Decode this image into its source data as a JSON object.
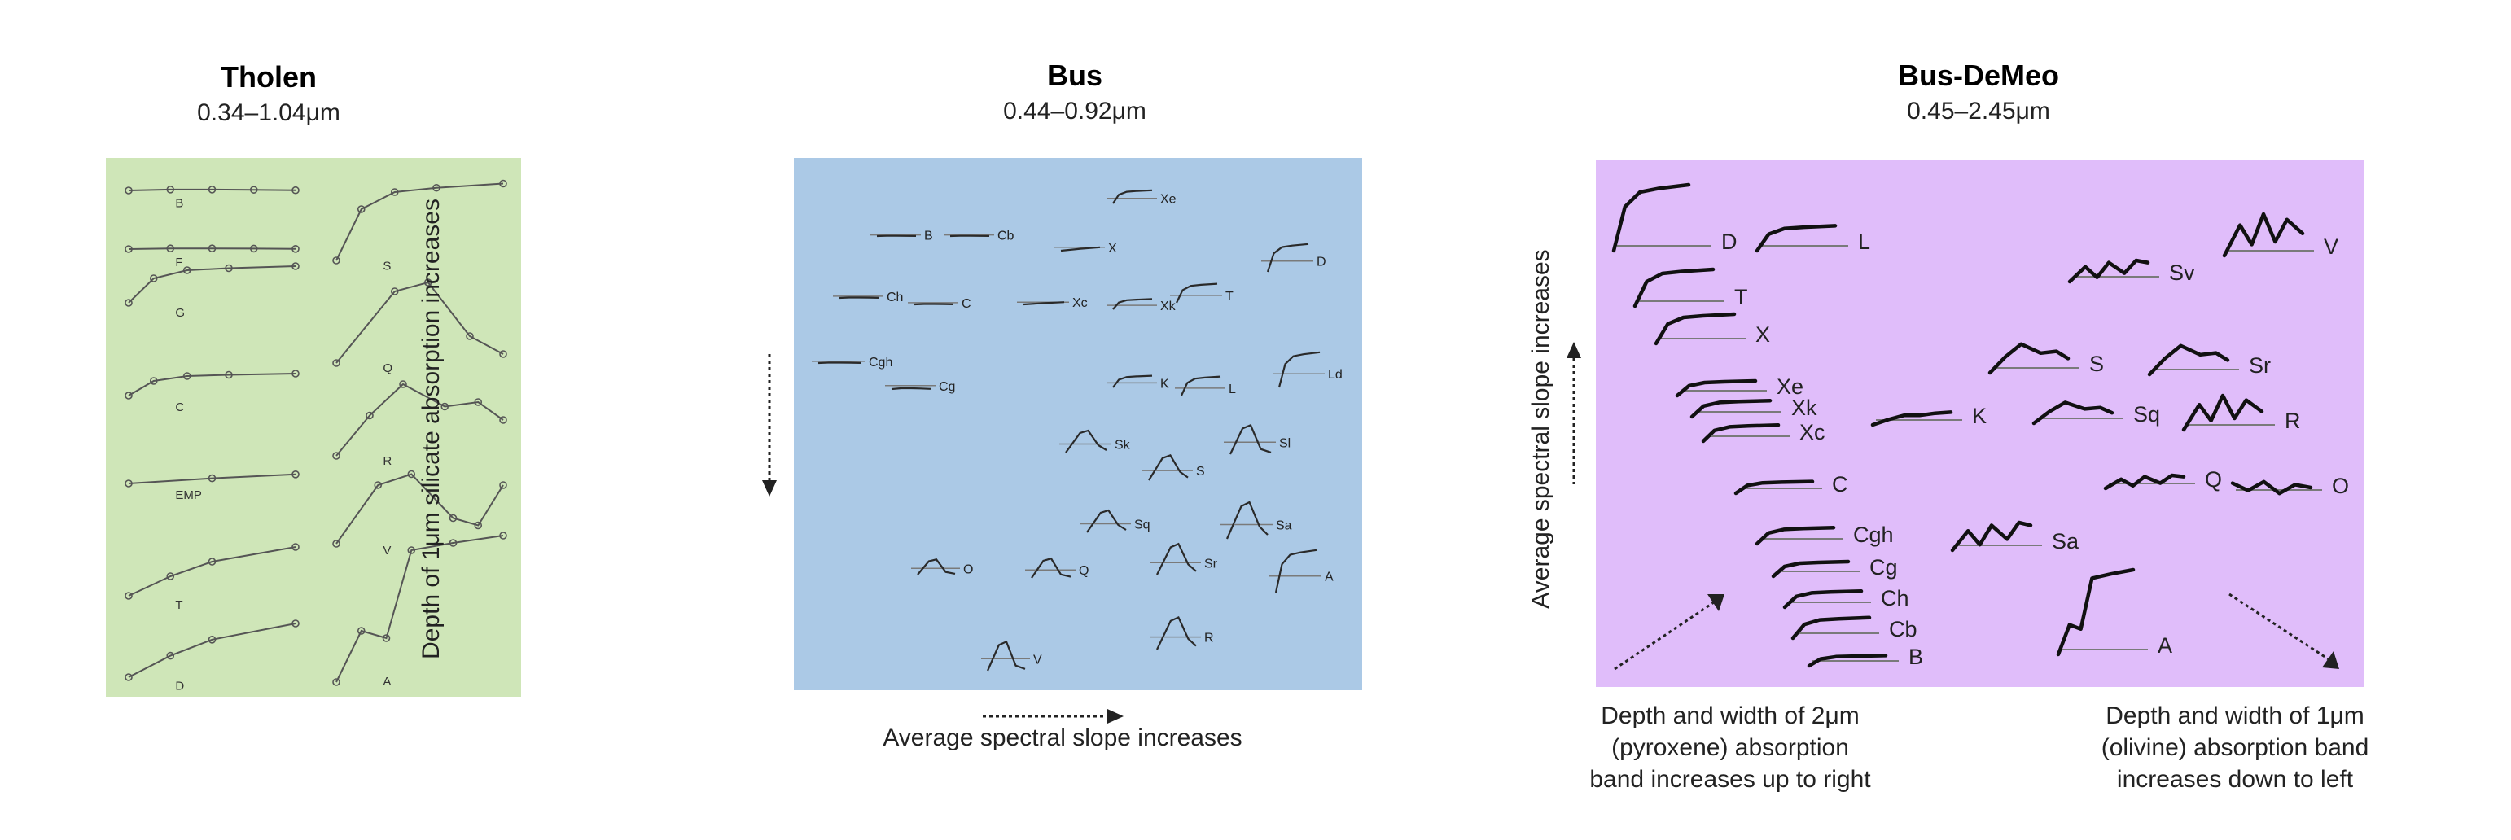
{
  "panels": [
    {
      "id": "tholen",
      "title": "Tholen",
      "range": "0.34–1.04μm",
      "bg": "#cfe6b8",
      "classes": [
        "B",
        "F",
        "G",
        "C",
        "EMP",
        "T",
        "D",
        "S",
        "Q",
        "R",
        "V",
        "A"
      ]
    },
    {
      "id": "bus",
      "title": "Bus",
      "range": "0.44–0.92μm",
      "bg": "#abc9e6",
      "y_axis": "Depth of 1μm silicate absorption increases",
      "x_axis": "Average spectral slope increases",
      "classes": [
        "Xe",
        "B",
        "Cb",
        "X",
        "D",
        "Ch",
        "C",
        "Xc",
        "Xk",
        "T",
        "Cgh",
        "Cg",
        "K",
        "L",
        "Ld",
        "Sk",
        "S",
        "Sl",
        "Sq",
        "Sa",
        "O",
        "Q",
        "Sr",
        "A",
        "V",
        "R"
      ]
    },
    {
      "id": "busdemeo",
      "title": "Bus-DeMeo",
      "range": "0.45–2.45μm",
      "bg": "#e0bdfa",
      "y_axis": "Average spectral slope increases",
      "note_left": [
        "Depth and width of 2μm",
        "(pyroxene) absorption",
        "band increases up to right"
      ],
      "note_right": [
        "Depth and width of 1μm",
        "(olivine) absorption band",
        "increases down to left"
      ],
      "classes": [
        "D",
        "L",
        "T",
        "X",
        "Xe",
        "Xk",
        "Xc",
        "C",
        "Cgh",
        "Cg",
        "Ch",
        "Cb",
        "B",
        "K",
        "Sv",
        "V",
        "S",
        "Sr",
        "Sq",
        "R",
        "Q",
        "O",
        "Sa",
        "A"
      ]
    }
  ],
  "colors": {
    "curve": "#2a2a2a",
    "thin": "#555555",
    "baseline": "#7a7a7a"
  }
}
